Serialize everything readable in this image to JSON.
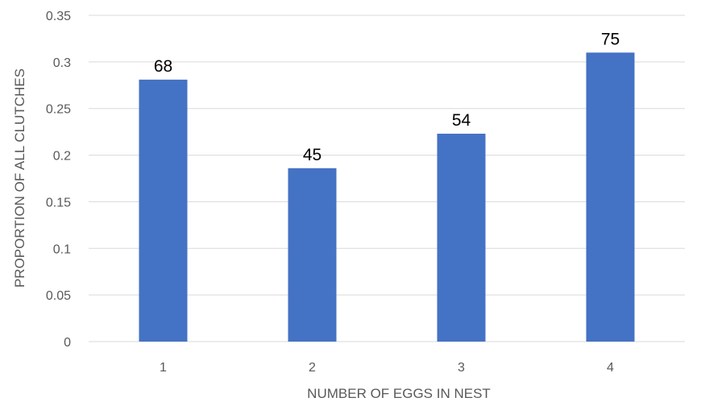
{
  "chart_data": {
    "type": "bar",
    "title": "",
    "xlabel": "NUMBER OF EGGS IN NEST",
    "ylabel": "PROPORTION OF ALL CLUTCHES",
    "categories": [
      "1",
      "2",
      "3",
      "4"
    ],
    "values": [
      0.281,
      0.186,
      0.223,
      0.31
    ],
    "data_labels": [
      "68",
      "45",
      "54",
      "75"
    ],
    "ylim": [
      0,
      0.35
    ],
    "yticks": [
      {
        "value": 0,
        "label": "0"
      },
      {
        "value": 0.05,
        "label": "0.05"
      },
      {
        "value": 0.1,
        "label": "0.1"
      },
      {
        "value": 0.15,
        "label": "0.15"
      },
      {
        "value": 0.2,
        "label": "0.2"
      },
      {
        "value": 0.25,
        "label": "0.25"
      },
      {
        "value": 0.3,
        "label": "0.3"
      },
      {
        "value": 0.35,
        "label": "0.35"
      }
    ],
    "grid": true,
    "legend": "none",
    "colors": {
      "bar": "#4472C4",
      "grid": "#D9D9D9",
      "axis": "#D9D9D9"
    }
  }
}
